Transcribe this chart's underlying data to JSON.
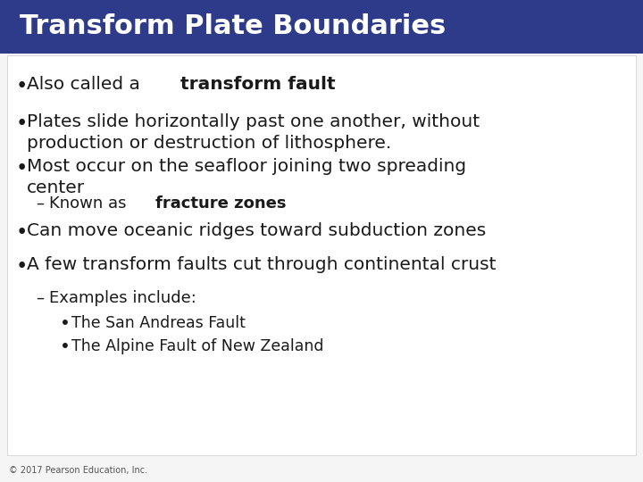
{
  "title": "Transform Plate Boundaries",
  "title_bg_color": "#2E3B8A",
  "title_text_color": "#FFFFFF",
  "bg_color": "#F0F0F0",
  "content_bg_color": "#F5F5F5",
  "footer": "© 2017 Pearson Education, Inc.",
  "lines": [
    {
      "type": "bullet",
      "level": 0,
      "text_parts": [
        {
          "text": "Also called a ",
          "bold": false
        },
        {
          "text": "transform fault",
          "bold": true
        }
      ]
    },
    {
      "type": "bullet",
      "level": 0,
      "text_parts": [
        {
          "text": "Plates slide horizontally past one another, without\nproduction or destruction of lithosphere.",
          "bold": false
        }
      ]
    },
    {
      "type": "bullet",
      "level": 0,
      "text_parts": [
        {
          "text": "Most occur on the seafloor joining two spreading\ncenter",
          "bold": false
        }
      ]
    },
    {
      "type": "dash",
      "level": 1,
      "text_parts": [
        {
          "text": "Known as ",
          "bold": false
        },
        {
          "text": "fracture zones",
          "bold": true
        }
      ]
    },
    {
      "type": "bullet",
      "level": 0,
      "text_parts": [
        {
          "text": "Can move oceanic ridges toward subduction zones",
          "bold": false
        }
      ]
    },
    {
      "type": "bullet",
      "level": 0,
      "text_parts": [
        {
          "text": "A few transform faults cut through continental crust",
          "bold": false
        }
      ]
    },
    {
      "type": "dash",
      "level": 1,
      "text_parts": [
        {
          "text": "Examples include:",
          "bold": false
        }
      ]
    },
    {
      "type": "bullet",
      "level": 2,
      "text_parts": [
        {
          "text": "The San Andreas Fault",
          "bold": false
        }
      ]
    },
    {
      "type": "bullet",
      "level": 2,
      "text_parts": [
        {
          "text": "The Alpine Fault of New Zealand",
          "bold": false
        }
      ]
    }
  ]
}
